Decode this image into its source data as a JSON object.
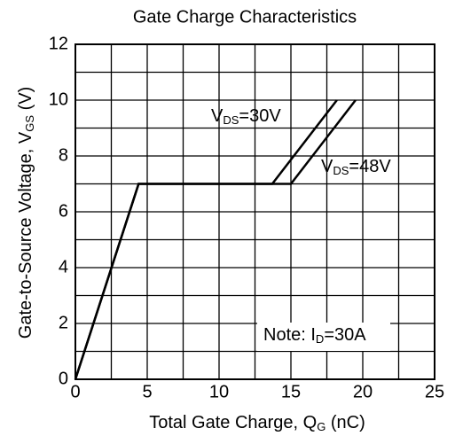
{
  "chart_data": {
    "type": "line",
    "title": "Gate Charge Characteristics",
    "xlabel": {
      "main": "Total Gate Charge, Q",
      "sub": "G",
      "tail": " (nC)"
    },
    "ylabel": {
      "main": "Gate-to-Source Voltage, V",
      "sub": "GS",
      "tail": " (V)"
    },
    "series": [
      {
        "color": "#000000",
        "x": [
          0,
          4.4,
          13.7,
          18.2
        ],
        "values": [
          0,
          7,
          7,
          10
        ]
      },
      {
        "color": "#000000",
        "x": [
          0,
          4.4,
          15,
          19.5
        ],
        "values": [
          0,
          7,
          7,
          10
        ]
      }
    ],
    "annotations": [
      {
        "main": "V",
        "sub": "DS",
        "tail": "=30V"
      },
      {
        "main": "V",
        "sub": "DS",
        "tail": "=48V"
      },
      {
        "main": "Note: I",
        "sub": "D",
        "tail": "=30A"
      }
    ],
    "xlim": [
      0,
      25
    ],
    "xticks": [
      0,
      5,
      10,
      15,
      20,
      25
    ],
    "ylim": [
      0,
      12
    ],
    "yticks": [
      0,
      2,
      4,
      6,
      8,
      10,
      12
    ],
    "grid": {
      "x_step": 2.5,
      "y_step": 1
    }
  }
}
